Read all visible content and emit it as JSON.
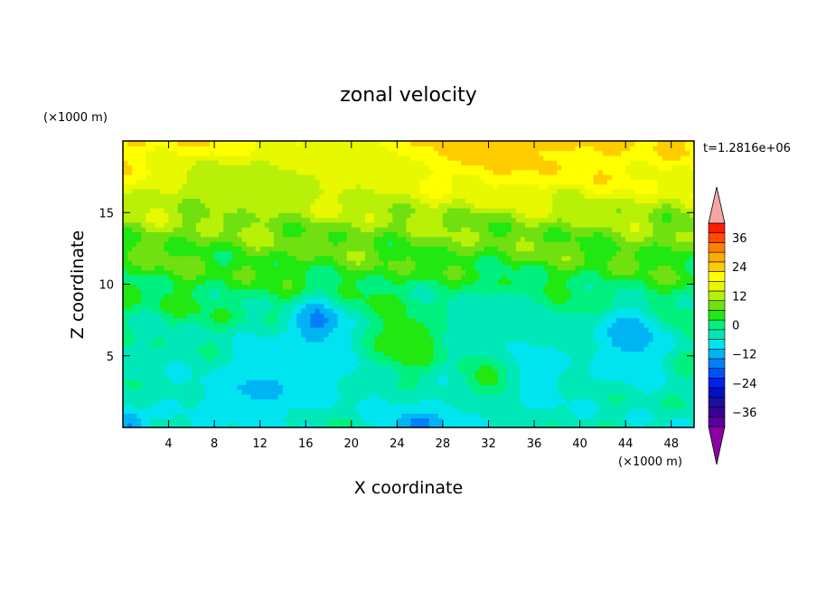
{
  "chart_data": {
    "type": "heatmap",
    "title": "zonal velocity",
    "xlabel": "X coordinate",
    "ylabel": "Z coordinate",
    "x_unit": "(×1000 m)",
    "y_unit": "(×1000 m)",
    "time_label": "t=1.2816e+06",
    "xlim": [
      0,
      50
    ],
    "ylim": [
      0,
      20
    ],
    "x_ticks": [
      "4",
      "8",
      "12",
      "16",
      "20",
      "24",
      "28",
      "32",
      "36",
      "40",
      "44",
      "48"
    ],
    "y_ticks": [
      "5",
      "10",
      "15"
    ],
    "colorbar": {
      "tick_labels": [
        "36",
        "24",
        "12",
        "0",
        "−12",
        "−24",
        "−36"
      ],
      "tick_values": [
        36,
        24,
        12,
        0,
        -12,
        -24,
        -36
      ],
      "range": [
        -42,
        42
      ],
      "step": 4,
      "extend": "both",
      "upper_arrow_color": "#f4a6a6",
      "lower_arrow_color": "#8c00a8",
      "levels": [
        {
          "max": -38,
          "color": "#5a00a0"
        },
        {
          "max": -34,
          "color": "#3a0090"
        },
        {
          "max": -30,
          "color": "#1a10a0"
        },
        {
          "max": -26,
          "color": "#0010c8"
        },
        {
          "max": -22,
          "color": "#0020f0"
        },
        {
          "max": -18,
          "color": "#0050f8"
        },
        {
          "max": -14,
          "color": "#0080f8"
        },
        {
          "max": -10,
          "color": "#00b4f4"
        },
        {
          "max": -6,
          "color": "#00e4f0"
        },
        {
          "max": -2,
          "color": "#00e8b8"
        },
        {
          "max": 2,
          "color": "#00f080"
        },
        {
          "max": 6,
          "color": "#20e810"
        },
        {
          "max": 10,
          "color": "#70e010"
        },
        {
          "max": 14,
          "color": "#b8f008"
        },
        {
          "max": 18,
          "color": "#e8f800"
        },
        {
          "max": 22,
          "color": "#ffff00"
        },
        {
          "max": 26,
          "color": "#ffcc00"
        },
        {
          "max": 30,
          "color": "#ffaa00"
        },
        {
          "max": 34,
          "color": "#ff8000"
        },
        {
          "max": 38,
          "color": "#ff4a00"
        },
        {
          "max": 42,
          "color": "#ff1c00"
        }
      ]
    },
    "grid": false,
    "field_features": [
      {
        "x": 31,
        "z": 19.5,
        "value": 28,
        "sx": 8,
        "sz": 1.8
      },
      {
        "x": 38,
        "z": 19,
        "value": 22,
        "sx": 7,
        "sz": 2
      },
      {
        "x": 20,
        "z": 18.5,
        "value": 14,
        "sx": 8,
        "sz": 2
      },
      {
        "x": 10,
        "z": 17,
        "value": 10,
        "sx": 6,
        "sz": 2
      },
      {
        "x": 17,
        "z": 7.3,
        "value": -22,
        "sx": 2,
        "sz": 1.6
      },
      {
        "x": 16,
        "z": 5,
        "value": -10,
        "sx": 5,
        "sz": 3
      },
      {
        "x": 11,
        "z": 2.5,
        "value": -11,
        "sx": 5,
        "sz": 2.5
      },
      {
        "x": 4,
        "z": 3,
        "value": -6,
        "sx": 3,
        "sz": 3
      },
      {
        "x": 44.5,
        "z": 6.5,
        "value": -22,
        "sx": 2,
        "sz": 1.5
      },
      {
        "x": 44,
        "z": 5.5,
        "value": -10,
        "sx": 4,
        "sz": 3
      },
      {
        "x": 35,
        "z": 4,
        "value": -9,
        "sx": 4,
        "sz": 3
      },
      {
        "x": 27,
        "z": 1.5,
        "value": -7,
        "sx": 6,
        "sz": 1.5
      },
      {
        "x": 26,
        "z": 0.3,
        "value": -16,
        "sx": 2.5,
        "sz": 0.8
      },
      {
        "x": 32,
        "z": 7.5,
        "value": -6,
        "sx": 6,
        "sz": 2.5
      },
      {
        "x": 25,
        "z": 6,
        "value": 7,
        "sx": 3,
        "sz": 2
      },
      {
        "x": 32,
        "z": 3.5,
        "value": 5,
        "sx": 2,
        "sz": 1.5
      },
      {
        "x": 0.5,
        "z": 0.3,
        "value": -16,
        "sx": 1.5,
        "sz": 1
      }
    ]
  }
}
